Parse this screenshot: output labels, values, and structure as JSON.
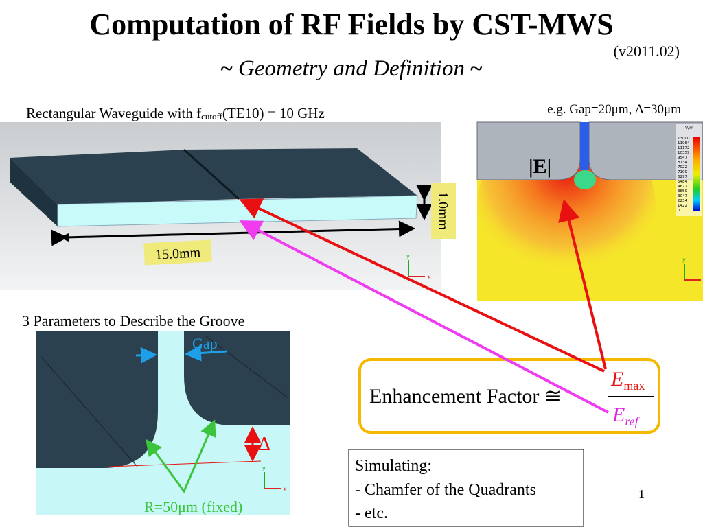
{
  "header": {
    "title": "Computation of RF Fields by CST-MWS",
    "subtitle_open": "~",
    "subtitle": "Geometry and Definition",
    "subtitle_close": "~",
    "version": "(v2011.02)"
  },
  "waveguide": {
    "caption_start": "Rectangular Waveguide with f",
    "caption_sub": "cutoff",
    "caption_end": "(TE10) = 10 GHz",
    "height_label": "1.0mm",
    "length_label": "15.0mm"
  },
  "field": {
    "example": "e.g. Gap=20μm, Δ=30μm",
    "label": "|E|",
    "unit": "V/m",
    "scale": [
      "13000",
      "11984",
      "11172",
      "10359",
      "9547",
      "8734",
      "7922",
      "7109",
      "6297",
      "5484",
      "4672",
      "3859",
      "3047",
      "2234",
      "1422",
      "0"
    ]
  },
  "axes": {
    "x": "x",
    "y": "y"
  },
  "groove": {
    "heading": "3 Parameters to Describe the Groove",
    "gap": "Gap",
    "delta": "Δ",
    "radius": "R=50μm (fixed)"
  },
  "definition": {
    "text": "Enhancement Factor ≅",
    "numerator": "E",
    "numerator_sub": "max",
    "denominator": "E",
    "denominator_sub": "ref"
  },
  "notes": {
    "heading": "Simulating:",
    "items": [
      "- Chamfer of the Quadrants",
      "- etc."
    ]
  },
  "page_number": "1"
}
